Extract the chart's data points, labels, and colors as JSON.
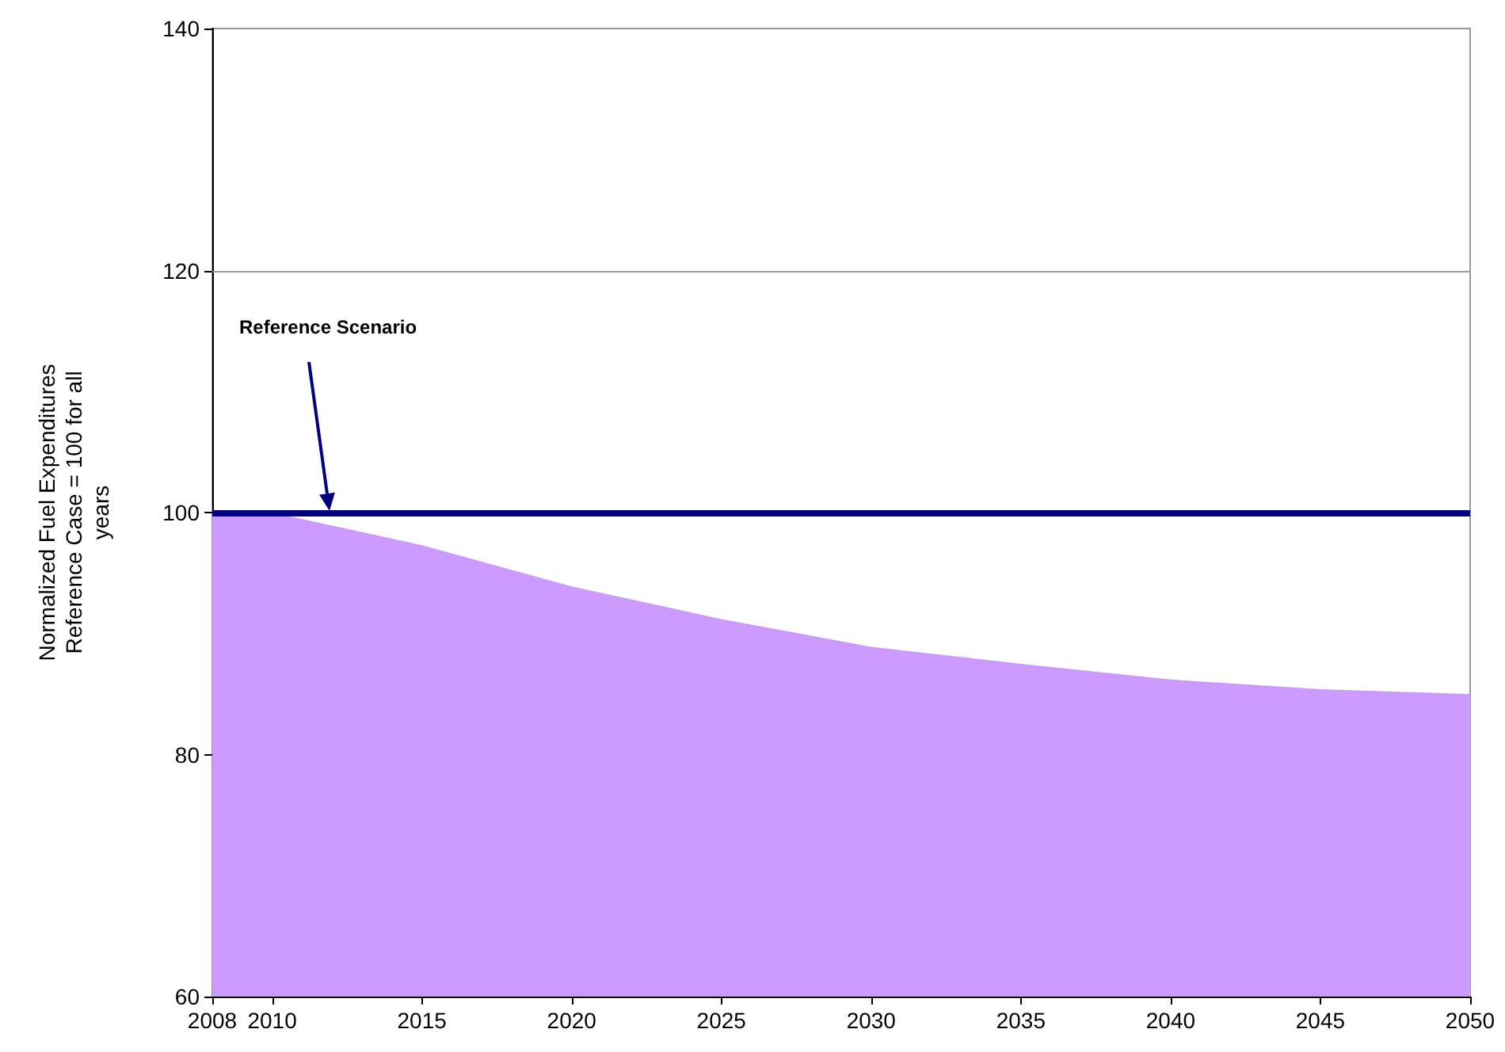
{
  "chart_data": {
    "type": "area",
    "ylabel": "Normalized Fuel Expenditures Reference Case = 100 for all years",
    "x": [
      2008,
      2010,
      2015,
      2020,
      2025,
      2030,
      2035,
      2040,
      2045,
      2050
    ],
    "series": [
      {
        "color": "#cc99ff",
        "values": [
          100,
          100,
          97.3,
          93.9,
          91.2,
          88.9,
          87.5,
          86.2,
          85.4,
          85.0
        ]
      }
    ],
    "xlim": [
      2008,
      2050
    ],
    "xticks": [
      2008,
      2010,
      2015,
      2020,
      2025,
      2030,
      2035,
      2040,
      2045,
      2050
    ],
    "ylim": [
      60,
      140
    ],
    "yticks": [
      60,
      80,
      100,
      120,
      140
    ],
    "ref_lines": [
      {
        "axis": "y",
        "value": 100,
        "color": "#000080"
      },
      {
        "axis": "y",
        "value": 120,
        "color": "#999999"
      }
    ],
    "annotations": [
      "Reference Scenario"
    ],
    "marker": "none"
  }
}
